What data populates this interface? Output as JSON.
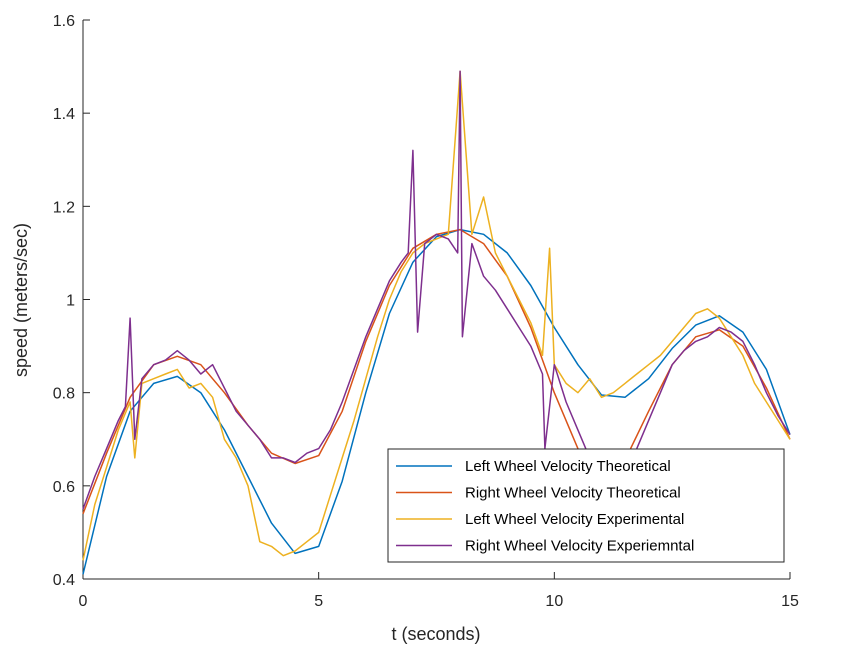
{
  "chart_data": {
    "type": "line",
    "title": "",
    "xlabel": "t (seconds)",
    "ylabel": "speed (meters/sec)",
    "xlim": [
      0,
      15
    ],
    "ylim": [
      0.4,
      1.6
    ],
    "xticks": [
      0,
      5,
      10,
      15
    ],
    "xtick_labels": [
      "0",
      "5",
      "10",
      "15"
    ],
    "yticks": [
      0.4,
      0.6,
      0.8,
      1.0,
      1.2,
      1.4,
      1.6
    ],
    "ytick_labels": [
      "0.4",
      "0.6",
      "0.8",
      "1",
      "1.2",
      "1.4",
      "1.6"
    ],
    "grid": false,
    "legend_position": "bottom-right",
    "series": [
      {
        "name": "Left Wheel Velocity Theoretical",
        "color": "#0072BD",
        "x": [
          0,
          0.5,
          1,
          1.5,
          2,
          2.5,
          3,
          3.5,
          4,
          4.5,
          5,
          5.5,
          6,
          6.5,
          7,
          7.5,
          8,
          8.5,
          9,
          9.5,
          10,
          10.5,
          11,
          11.5,
          12,
          12.5,
          13,
          13.5,
          14,
          14.5,
          15
        ],
        "y": [
          0.41,
          0.62,
          0.76,
          0.82,
          0.835,
          0.8,
          0.72,
          0.62,
          0.52,
          0.455,
          0.47,
          0.61,
          0.8,
          0.97,
          1.08,
          1.135,
          1.15,
          1.14,
          1.1,
          1.03,
          0.94,
          0.86,
          0.795,
          0.79,
          0.83,
          0.895,
          0.945,
          0.965,
          0.93,
          0.85,
          0.71
        ]
      },
      {
        "name": "Right Wheel Velocity Theoretical",
        "color": "#D95319",
        "x": [
          0,
          0.5,
          1,
          1.5,
          2,
          2.5,
          3,
          3.5,
          4,
          4.5,
          5,
          5.5,
          6,
          6.5,
          7,
          7.5,
          8,
          8.5,
          9,
          9.5,
          10,
          10.5,
          11,
          11.5,
          12,
          12.5,
          13,
          13.5,
          14,
          14.5,
          15
        ],
        "y": [
          0.54,
          0.67,
          0.79,
          0.86,
          0.878,
          0.86,
          0.8,
          0.73,
          0.67,
          0.648,
          0.665,
          0.76,
          0.91,
          1.03,
          1.11,
          1.14,
          1.15,
          1.12,
          1.05,
          0.94,
          0.8,
          0.68,
          0.615,
          0.655,
          0.76,
          0.86,
          0.92,
          0.935,
          0.9,
          0.81,
          0.7
        ]
      },
      {
        "name": "Left Wheel Velocity Experimental",
        "color": "#EDB120",
        "x": [
          0,
          0.25,
          0.5,
          0.75,
          1,
          1.1,
          1.25,
          1.5,
          1.75,
          2,
          2.25,
          2.5,
          2.75,
          3,
          3.25,
          3.5,
          3.75,
          4,
          4.25,
          4.5,
          4.75,
          5,
          5.25,
          5.5,
          5.75,
          6,
          6.25,
          6.5,
          6.75,
          7,
          7.25,
          7.5,
          7.75,
          8,
          8.25,
          8.5,
          8.75,
          9,
          9.25,
          9.5,
          9.75,
          9.9,
          10,
          10.25,
          10.5,
          10.75,
          11,
          11.25,
          11.5,
          11.75,
          12,
          12.25,
          12.5,
          12.75,
          13,
          13.25,
          13.5,
          13.75,
          14,
          14.25,
          14.5,
          14.75,
          15
        ],
        "y": [
          0.44,
          0.56,
          0.64,
          0.72,
          0.78,
          0.66,
          0.82,
          0.83,
          0.84,
          0.85,
          0.81,
          0.82,
          0.79,
          0.7,
          0.66,
          0.6,
          0.48,
          0.47,
          0.45,
          0.46,
          0.48,
          0.5,
          0.58,
          0.66,
          0.74,
          0.83,
          0.92,
          1.0,
          1.06,
          1.1,
          1.12,
          1.13,
          1.14,
          1.49,
          1.14,
          1.22,
          1.1,
          1.05,
          1.0,
          0.95,
          0.88,
          1.11,
          0.86,
          0.82,
          0.8,
          0.83,
          0.79,
          0.8,
          0.82,
          0.84,
          0.86,
          0.88,
          0.91,
          0.94,
          0.97,
          0.98,
          0.96,
          0.92,
          0.88,
          0.82,
          0.78,
          0.74,
          0.7
        ]
      },
      {
        "name": "Right Wheel Velocity Experiemntal",
        "color": "#7E2F8E",
        "x": [
          0,
          0.25,
          0.5,
          0.75,
          0.9,
          1,
          1.1,
          1.25,
          1.5,
          1.75,
          2,
          2.25,
          2.5,
          2.75,
          3,
          3.25,
          3.5,
          3.75,
          4,
          4.25,
          4.5,
          4.75,
          5,
          5.25,
          5.5,
          5.75,
          6,
          6.25,
          6.5,
          6.75,
          6.9,
          7,
          7.1,
          7.25,
          7.5,
          7.75,
          7.95,
          8,
          8.05,
          8.25,
          8.5,
          8.75,
          9,
          9.25,
          9.5,
          9.75,
          9.8,
          10,
          10.25,
          10.5,
          10.75,
          11,
          11.25,
          11.5,
          11.75,
          12,
          12.25,
          12.5,
          12.75,
          13,
          13.25,
          13.5,
          13.75,
          14,
          14.25,
          14.5,
          14.75,
          15
        ],
        "y": [
          0.55,
          0.62,
          0.68,
          0.74,
          0.77,
          0.96,
          0.7,
          0.83,
          0.86,
          0.87,
          0.89,
          0.87,
          0.84,
          0.86,
          0.81,
          0.76,
          0.73,
          0.7,
          0.66,
          0.66,
          0.65,
          0.67,
          0.68,
          0.72,
          0.78,
          0.85,
          0.92,
          0.98,
          1.04,
          1.08,
          1.1,
          1.32,
          0.93,
          1.12,
          1.14,
          1.13,
          1.1,
          1.49,
          0.92,
          1.12,
          1.05,
          1.02,
          0.98,
          0.94,
          0.9,
          0.84,
          0.68,
          0.86,
          0.78,
          0.72,
          0.66,
          0.63,
          0.62,
          0.64,
          0.68,
          0.74,
          0.8,
          0.86,
          0.89,
          0.91,
          0.92,
          0.94,
          0.93,
          0.91,
          0.86,
          0.8,
          0.75,
          0.71
        ]
      }
    ]
  }
}
